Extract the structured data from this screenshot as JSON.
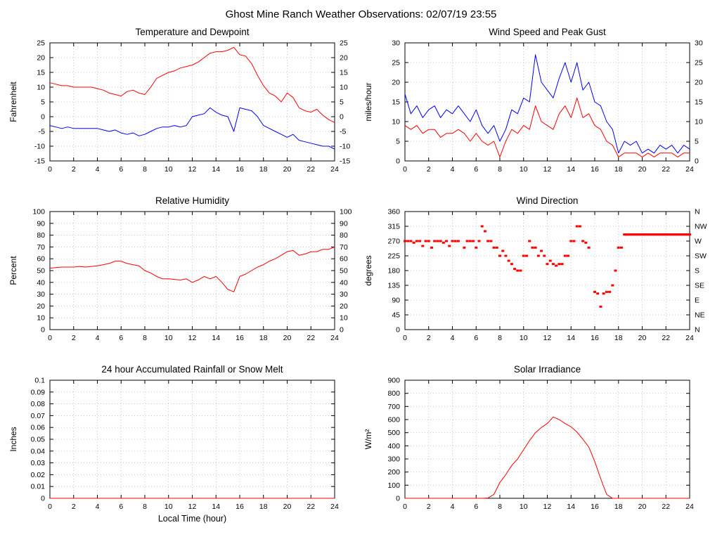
{
  "title": "Ghost Mine Ranch Weather Observations: 02/07/19 23:55",
  "colors": {
    "line_red": "#ff0000",
    "line_blue": "#0000ff",
    "grid": "#b5b5b5",
    "axis": "#000000"
  },
  "chart_data": [
    {
      "id": "temperature_dewpoint",
      "type": "line",
      "title": "Temperature and Dewpoint",
      "ylabel": "Fahrenheit",
      "ylim": [
        -15,
        25
      ],
      "ytick_step": 5,
      "xlim": [
        0,
        24
      ],
      "xtick_step": 2,
      "right_labels": true,
      "x": [
        0,
        0.5,
        1,
        1.5,
        2,
        2.5,
        3,
        3.5,
        4,
        4.5,
        5,
        5.5,
        6,
        6.5,
        7,
        7.5,
        8,
        8.5,
        9,
        9.5,
        10,
        10.5,
        11,
        11.5,
        12,
        12.5,
        13,
        13.5,
        14,
        14.5,
        15,
        15.5,
        16,
        16.5,
        17,
        17.5,
        18,
        18.5,
        19,
        19.5,
        20,
        20.5,
        21,
        21.5,
        22,
        22.5,
        23,
        23.5,
        24
      ],
      "series": [
        {
          "name": "Temperature",
          "color": "#ff0000",
          "values": [
            11.5,
            11,
            10.5,
            10.5,
            10,
            10,
            10,
            10,
            9.5,
            9,
            8,
            7.5,
            7,
            8.5,
            9,
            8,
            7.5,
            10,
            13,
            14,
            15,
            15.5,
            16.5,
            17,
            17.5,
            18.5,
            20,
            21.5,
            22,
            22,
            22.5,
            23.5,
            21,
            20.5,
            18,
            14,
            10.5,
            8,
            7,
            5,
            8,
            6.5,
            3,
            2,
            1.5,
            2.5,
            0.5,
            -1,
            -2
          ]
        },
        {
          "name": "Dewpoint",
          "color": "#0000ff",
          "values": [
            -3,
            -3.5,
            -4,
            -3.5,
            -4,
            -4,
            -4,
            -4,
            -4,
            -4.5,
            -5,
            -4.5,
            -5.5,
            -6,
            -5.5,
            -6.5,
            -6,
            -5,
            -4,
            -3.5,
            -3.5,
            -3,
            -3.5,
            -3,
            0,
            0.5,
            1,
            3,
            1.5,
            0.5,
            0,
            -5,
            3,
            2.5,
            2,
            0,
            -3,
            -4,
            -5,
            -6,
            -7,
            -6,
            -8,
            -8.5,
            -9,
            -9.5,
            -10,
            -10,
            -11
          ]
        }
      ]
    },
    {
      "id": "wind_speed_gust",
      "type": "line",
      "title": "Wind Speed and Peak Gust",
      "ylabel": "miles/hour",
      "ylim": [
        0,
        30
      ],
      "ytick_step": 5,
      "xlim": [
        0,
        24
      ],
      "xtick_step": 2,
      "right_labels": true,
      "x": [
        0,
        0.5,
        1,
        1.5,
        2,
        2.5,
        3,
        3.5,
        4,
        4.5,
        5,
        5.5,
        6,
        6.5,
        7,
        7.5,
        8,
        8.5,
        9,
        9.5,
        10,
        10.5,
        11,
        11.5,
        12,
        12.5,
        13,
        13.5,
        14,
        14.5,
        15,
        15.5,
        16,
        16.5,
        17,
        17.5,
        18,
        18.5,
        19,
        19.5,
        20,
        20.5,
        21,
        21.5,
        22,
        22.5,
        23,
        23.5,
        24
      ],
      "series": [
        {
          "name": "Peak Gust",
          "color": "#0000ff",
          "values": [
            17,
            12,
            14,
            11,
            13,
            14,
            11,
            13,
            12,
            14,
            12,
            10,
            13,
            9,
            7,
            9,
            5,
            8,
            13,
            12,
            16,
            15,
            27,
            20,
            18,
            16,
            21,
            25,
            20,
            25,
            18,
            20,
            15,
            14,
            10,
            8,
            2,
            5,
            4,
            5,
            2,
            3,
            2,
            4,
            3,
            4,
            2,
            4,
            3
          ]
        },
        {
          "name": "Wind Speed",
          "color": "#ff0000",
          "values": [
            9,
            8,
            9,
            7,
            8,
            8,
            6,
            7,
            7,
            8,
            7,
            5,
            7,
            5,
            4,
            5,
            1,
            5,
            8,
            7,
            9,
            8,
            14,
            10,
            9,
            8,
            12,
            14,
            11,
            16,
            11,
            12,
            9,
            8,
            5,
            4,
            1,
            2,
            2,
            2,
            1,
            2,
            1,
            2,
            2,
            2,
            1,
            2,
            2
          ]
        }
      ]
    },
    {
      "id": "relative_humidity",
      "type": "line",
      "title": "Relative Humidity",
      "ylabel": "Percent",
      "ylim": [
        0,
        100
      ],
      "ytick_step": 10,
      "xlim": [
        0,
        24
      ],
      "xtick_step": 2,
      "right_labels": true,
      "x": [
        0,
        0.5,
        1,
        1.5,
        2,
        2.5,
        3,
        3.5,
        4,
        4.5,
        5,
        5.5,
        6,
        6.5,
        7,
        7.5,
        8,
        8.5,
        9,
        9.5,
        10,
        10.5,
        11,
        11.5,
        12,
        12.5,
        13,
        13.5,
        14,
        14.5,
        15,
        15.5,
        16,
        16.5,
        17,
        17.5,
        18,
        18.5,
        19,
        19.5,
        20,
        20.5,
        21,
        21.5,
        22,
        22.5,
        23,
        23.5,
        24
      ],
      "series": [
        {
          "name": "Relative Humidity",
          "color": "#ff0000",
          "values": [
            52,
            52.5,
            53,
            53,
            53,
            53.5,
            53,
            53.5,
            54,
            55,
            56,
            58,
            58,
            56,
            55,
            54,
            50,
            48,
            45,
            43,
            43,
            42.5,
            42,
            43,
            40,
            42,
            45,
            43,
            45,
            40,
            34,
            32,
            45,
            47,
            50,
            53,
            55,
            58,
            60,
            63,
            66,
            67,
            63,
            64,
            66,
            66,
            68,
            68,
            70
          ]
        }
      ]
    },
    {
      "id": "wind_direction",
      "type": "scatter",
      "title": "Wind Direction",
      "ylabel": "degrees",
      "ylim": [
        0,
        360
      ],
      "yticks": [
        0,
        45,
        90,
        135,
        180,
        225,
        270,
        315,
        360
      ],
      "xlim": [
        0,
        24
      ],
      "xtick_step": 2,
      "right_labels": [
        "N",
        "NE",
        "E",
        "SE",
        "S",
        "SW",
        "W",
        "NW",
        "N"
      ],
      "marker_color": "#ff0000",
      "points": [
        [
          0,
          270
        ],
        [
          0.25,
          270
        ],
        [
          0.5,
          270
        ],
        [
          0.75,
          265
        ],
        [
          1,
          270
        ],
        [
          1.25,
          270
        ],
        [
          1.5,
          255
        ],
        [
          1.75,
          270
        ],
        [
          2,
          270
        ],
        [
          2.25,
          250
        ],
        [
          2.5,
          270
        ],
        [
          2.75,
          270
        ],
        [
          3,
          270
        ],
        [
          3.25,
          265
        ],
        [
          3.5,
          270
        ],
        [
          3.75,
          255
        ],
        [
          4,
          270
        ],
        [
          4.25,
          270
        ],
        [
          4.5,
          270
        ],
        [
          5,
          250
        ],
        [
          5.25,
          270
        ],
        [
          5.5,
          270
        ],
        [
          5.75,
          270
        ],
        [
          6,
          250
        ],
        [
          6.25,
          270
        ],
        [
          6.5,
          315
        ],
        [
          6.75,
          300
        ],
        [
          7,
          270
        ],
        [
          7.25,
          270
        ],
        [
          7.5,
          250
        ],
        [
          7.75,
          250
        ],
        [
          8,
          225
        ],
        [
          8.25,
          240
        ],
        [
          8.5,
          225
        ],
        [
          8.75,
          210
        ],
        [
          9,
          200
        ],
        [
          9.25,
          185
        ],
        [
          9.5,
          180
        ],
        [
          9.75,
          180
        ],
        [
          10,
          225
        ],
        [
          10.25,
          225
        ],
        [
          10.5,
          270
        ],
        [
          10.75,
          250
        ],
        [
          11,
          250
        ],
        [
          11.25,
          225
        ],
        [
          11.5,
          240
        ],
        [
          11.75,
          225
        ],
        [
          12,
          200
        ],
        [
          12.25,
          210
        ],
        [
          12.5,
          200
        ],
        [
          12.75,
          195
        ],
        [
          13,
          200
        ],
        [
          13.25,
          200
        ],
        [
          13.5,
          225
        ],
        [
          13.75,
          225
        ],
        [
          14,
          270
        ],
        [
          14.25,
          270
        ],
        [
          14.5,
          315
        ],
        [
          14.75,
          315
        ],
        [
          15,
          270
        ],
        [
          15.25,
          265
        ],
        [
          15.5,
          250
        ],
        [
          16,
          115
        ],
        [
          16.25,
          110
        ],
        [
          16.5,
          70
        ],
        [
          16.75,
          110
        ],
        [
          17,
          115
        ],
        [
          17.25,
          115
        ],
        [
          17.5,
          135
        ],
        [
          17.75,
          180
        ],
        [
          18,
          250
        ],
        [
          18.25,
          250
        ]
      ],
      "runs": [
        {
          "y": 290,
          "from": 18.5,
          "to": 24,
          "step": 0.1
        }
      ]
    },
    {
      "id": "rainfall",
      "type": "line",
      "title": "24 hour Accumulated Rainfall or Snow Melt",
      "ylabel": "Inches",
      "xlabel": "Local Time (hour)",
      "ylim": [
        0,
        0.1
      ],
      "ytick_step": 0.01,
      "xlim": [
        0,
        24
      ],
      "xtick_step": 2,
      "right_labels": false,
      "x": [
        0,
        2,
        4,
        6,
        8,
        10,
        12,
        14,
        16,
        18,
        20,
        22,
        24
      ],
      "series": [
        {
          "name": "Accumulated Rainfall",
          "color": "#ff0000",
          "values": [
            0,
            0,
            0,
            0,
            0,
            0,
            0,
            0,
            0,
            0,
            0,
            0,
            0
          ]
        }
      ]
    },
    {
      "id": "solar_irradiance",
      "type": "line",
      "title": "Solar Irradiance",
      "ylabel": "W/m²",
      "ylim": [
        0,
        900
      ],
      "ytick_step": 100,
      "xlim": [
        0,
        24
      ],
      "xtick_step": 2,
      "right_labels": false,
      "x": [
        0,
        0.5,
        1,
        1.5,
        2,
        2.5,
        3,
        3.5,
        4,
        4.5,
        5,
        5.5,
        6,
        6.5,
        7,
        7.5,
        8,
        8.5,
        9,
        9.5,
        10,
        10.5,
        11,
        11.5,
        12,
        12.5,
        13,
        13.5,
        14,
        14.5,
        15,
        15.5,
        16,
        16.5,
        17,
        17.5,
        18,
        18.5,
        19,
        19.5,
        20,
        20.5,
        21,
        21.5,
        22,
        22.5,
        23,
        23.5,
        24
      ],
      "series": [
        {
          "name": "Solar Irradiance",
          "color": "#ff0000",
          "values": [
            0,
            0,
            0,
            0,
            0,
            0,
            0,
            0,
            0,
            0,
            0,
            0,
            0,
            0,
            2,
            30,
            120,
            180,
            250,
            300,
            370,
            440,
            500,
            540,
            570,
            620,
            600,
            570,
            545,
            505,
            450,
            390,
            280,
            150,
            30,
            0,
            0,
            0,
            0,
            0,
            0,
            0,
            0,
            0,
            0,
            0,
            0,
            0,
            0
          ]
        }
      ]
    }
  ]
}
